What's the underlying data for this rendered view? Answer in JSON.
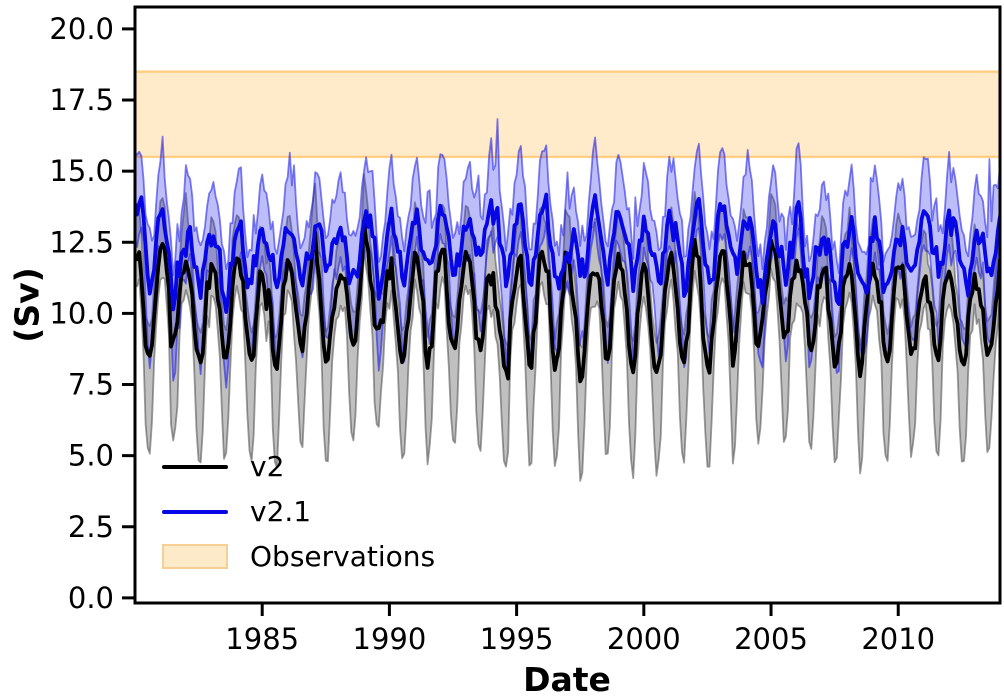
{
  "chart_data": {
    "type": "line",
    "title": "",
    "xlabel": "Date",
    "ylabel": "(Sv)",
    "grid": false,
    "xlim": [
      1980.0,
      2014.0
    ],
    "ylim": [
      -0.18,
      20.77
    ],
    "x_ticks": [
      1985,
      1990,
      1995,
      2000,
      2005,
      2010
    ],
    "x_tick_labels": [
      "1985",
      "1990",
      "1995",
      "2000",
      "2005",
      "2010"
    ],
    "y_ticks": [
      0,
      2.5,
      5,
      7.5,
      10,
      12.5,
      15,
      17.5,
      20
    ],
    "y_tick_labels": [
      "0.0",
      "2.5",
      "5.0",
      "7.5",
      "10.0",
      "12.5",
      "15.0",
      "17.5",
      "20.0"
    ],
    "legend": {
      "position": "lower-left",
      "frame": false,
      "entries": [
        {
          "label": "v2",
          "swatch": "line",
          "color": "#000000"
        },
        {
          "label": "v2.1",
          "swatch": "line",
          "color": "#0707e6"
        },
        {
          "label": "Observations",
          "swatch": "patch",
          "fill": "#fdeac9",
          "edge": "#f6cf95"
        }
      ]
    },
    "series": [
      {
        "name": "v2",
        "kind": "monthly line with ensemble spread band",
        "line_color": "#000000",
        "line_width": 3.8,
        "band_fill": "rgba(105,105,105,0.42)",
        "band_edge": "rgba(60,60,60,0.50)",
        "mean_sv": 10.5,
        "typical_seasonal_max_sv": 12.4,
        "typical_seasonal_min_sv": 8.7,
        "band_envelope_sv": [
          4.8,
          15.5
        ],
        "seasonality": "annual cycle, maximum near turn of year, sharp mid-year minima"
      },
      {
        "name": "v2.1",
        "kind": "monthly line with ensemble spread band",
        "line_color": "#0707e6",
        "line_width": 3.8,
        "band_fill": "rgba(35,35,235,0.30)",
        "band_edge": "rgba(25,25,230,0.55)",
        "mean_sv": 12.3,
        "typical_seasonal_max_sv": 13.8,
        "typical_seasonal_min_sv": 11.0,
        "band_envelope_sv": [
          8.4,
          16.6
        ],
        "seasonality": "annual cycle of smaller amplitude, offset ~1.8 Sv above v2"
      },
      {
        "name": "Observations",
        "kind": "horizontal reference band",
        "range_sv": [
          15.5,
          18.5
        ],
        "fill": "rgba(255,173,51,0.26)",
        "edge": "rgba(255,173,51,0.55)"
      }
    ],
    "synthesis": {
      "seed": 20,
      "months_per_year": 12,
      "v2": {
        "mean": 10.45,
        "amp": 1.55,
        "peak_phase": 0.04,
        "trough_skew": 0.5,
        "noise": 0.32,
        "ar": 0.55,
        "interannual": 0.5,
        "lo_base": 0.95,
        "lo_trough": 2.45,
        "lo_noise": 0.35,
        "hi_base": 0.95,
        "hi_peak": 0.55,
        "hi_noise": 0.3,
        "spike": 0.4,
        "spike_thresh": 1.4
      },
      "v21": {
        "mean": 12.3,
        "amp": 0.92,
        "peak_phase": 0.08,
        "trough_skew": 0.25,
        "noise": 0.36,
        "ar": 0.5,
        "interannual": 0.45,
        "lo_base": 0.95,
        "lo_trough": 1.55,
        "lo_noise": 0.3,
        "hi_base": 1.05,
        "hi_peak": 0.75,
        "hi_noise": 0.35,
        "spike": 0.9,
        "spike_thresh": 1.2
      }
    }
  }
}
